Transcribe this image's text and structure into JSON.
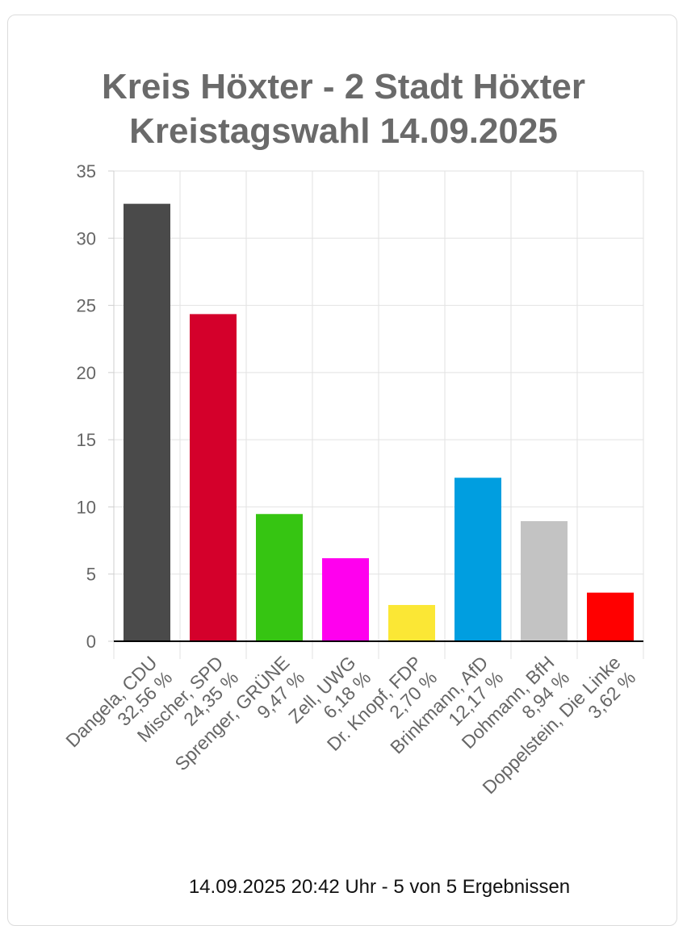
{
  "chart_data": {
    "type": "bar",
    "title": "Kreis Höxter - 2 Stadt Höxter",
    "subtitle": "Kreistagswahl 14.09.2025",
    "categories": [
      [
        "Dangela, CDU",
        "32,56 %"
      ],
      [
        "Mischer, SPD",
        "24,35 %"
      ],
      [
        "Sprenger, GRÜNE",
        "9,47 %"
      ],
      [
        "Zell, UWG",
        "6,18 %"
      ],
      [
        "Dr. Knopf, FDP",
        "2,70 %"
      ],
      [
        "Brinkmann, AfD",
        "12,17 %"
      ],
      [
        "Dohmann, BfH",
        "8,94 %"
      ],
      [
        "Doppelstein, Die Linke",
        "3,62 %"
      ]
    ],
    "values": [
      32.56,
      24.35,
      9.47,
      6.18,
      2.7,
      12.17,
      8.94,
      3.62
    ],
    "colors": [
      "#4a4a4a",
      "#d4002b",
      "#36c512",
      "#ff00ee",
      "#fbe735",
      "#009ee0",
      "#c3c3c3",
      "#ff0000"
    ],
    "ylim": [
      0,
      35
    ],
    "yticks": [
      0,
      5,
      10,
      15,
      20,
      25,
      30,
      35
    ],
    "grid": true,
    "xlabel": "",
    "ylabel": ""
  },
  "footer": "14.09.2025 20:42 Uhr - 5 von 5 Ergebnissen"
}
